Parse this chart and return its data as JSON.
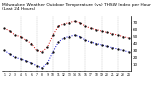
{
  "title": "Milwaukee Weather Outdoor Temperature (vs) THSW Index per Hour (Last 24 Hours)",
  "hours": [
    1,
    2,
    3,
    4,
    5,
    6,
    7,
    8,
    9,
    10,
    11,
    12,
    13,
    14,
    15,
    16,
    17,
    18,
    19,
    20,
    21,
    22,
    23,
    24
  ],
  "temp": [
    62,
    58,
    52,
    50,
    45,
    40,
    30,
    28,
    35,
    52,
    65,
    68,
    70,
    72,
    70,
    65,
    62,
    60,
    58,
    56,
    54,
    52,
    50,
    48
  ],
  "thsw": [
    30,
    25,
    20,
    18,
    15,
    12,
    8,
    5,
    12,
    28,
    42,
    48,
    50,
    52,
    50,
    45,
    42,
    40,
    38,
    36,
    34,
    32,
    30,
    28
  ],
  "temp_color": "#cc0000",
  "thsw_color": "#0000cc",
  "black_color": "#000000",
  "bg_color": "#ffffff",
  "grid_color": "#999999",
  "ylim_min": 0,
  "ylim_max": 80,
  "yticks": [
    10,
    20,
    30,
    40,
    50,
    60,
    70
  ],
  "ylabel_fontsize": 3.0,
  "title_fontsize": 3.2,
  "line_width": 0.7,
  "marker_size": 1.2,
  "vline_x": [
    4,
    7,
    10,
    13,
    16,
    19,
    22
  ]
}
